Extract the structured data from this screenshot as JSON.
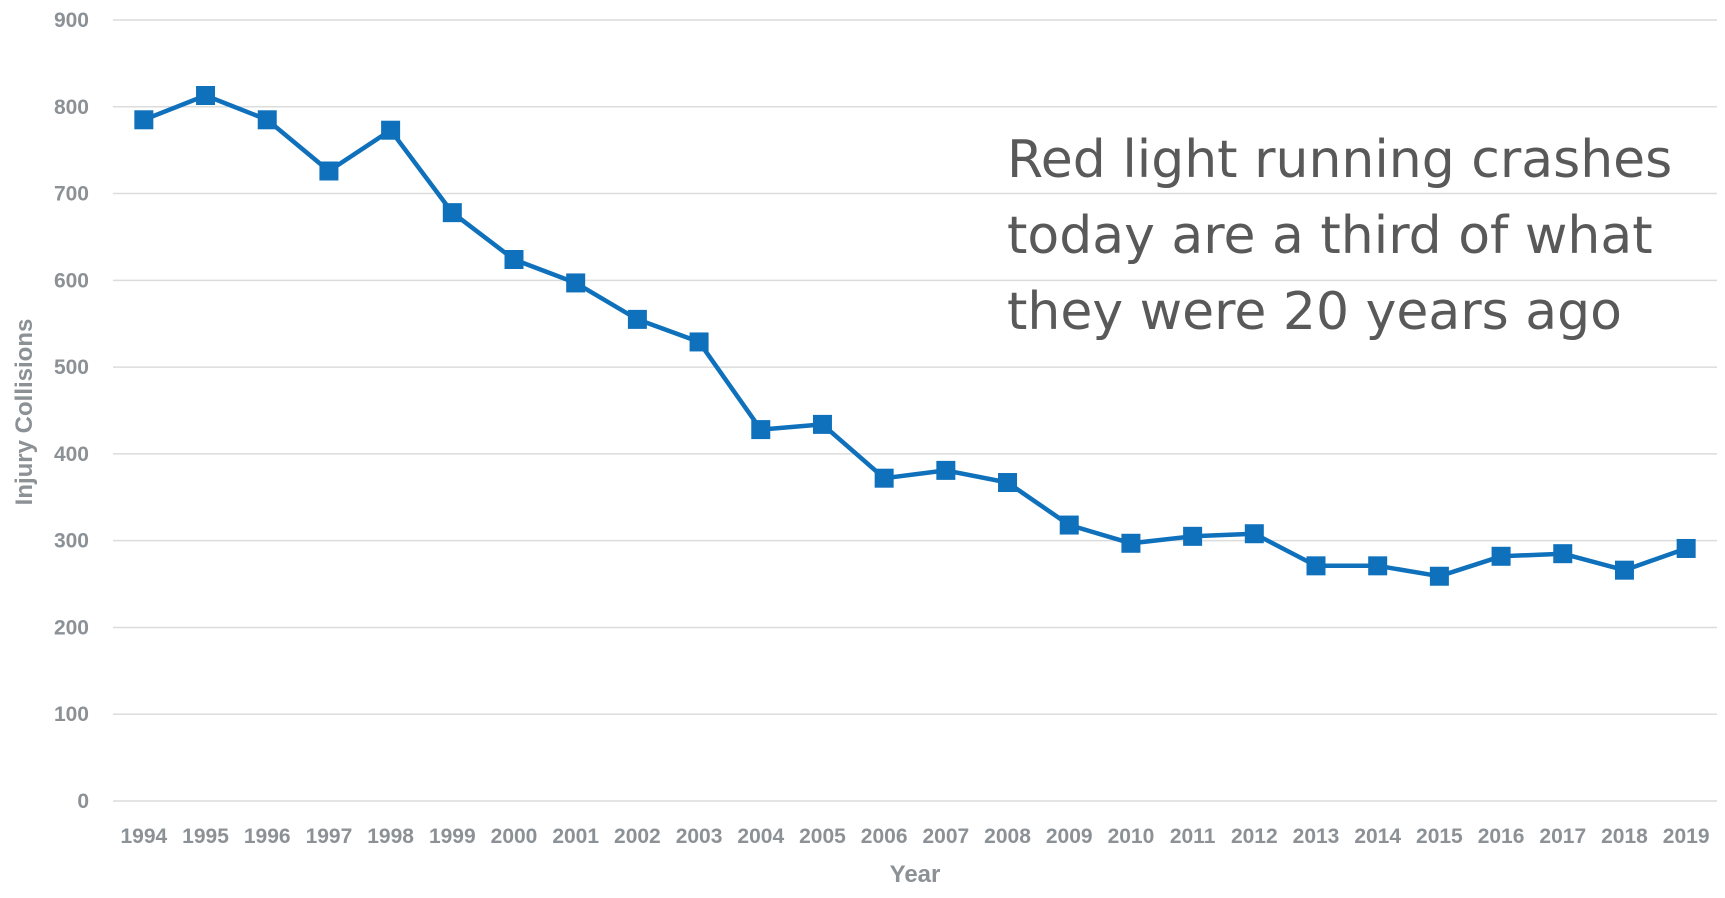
{
  "chart_data": {
    "type": "line",
    "title": "",
    "xlabel": "Year",
    "ylabel": "Injury Collisions",
    "ylim": [
      0,
      900
    ],
    "yticks": [
      "0",
      "100",
      "200",
      "300",
      "400",
      "500",
      "600",
      "700",
      "800",
      "900"
    ],
    "grid": true,
    "legend": "none",
    "categories": [
      "1994",
      "1995",
      "1996",
      "1997",
      "1998",
      "1999",
      "2000",
      "2001",
      "2002",
      "2003",
      "2004",
      "2005",
      "2006",
      "2007",
      "2008",
      "2009",
      "2010",
      "2011",
      "2012",
      "2013",
      "2014",
      "2015",
      "2016",
      "2017",
      "2018",
      "2019"
    ],
    "series": [
      {
        "values": [
          785,
          813,
          785,
          726,
          773,
          678,
          624,
          597,
          555,
          529,
          428,
          434,
          372,
          381,
          367,
          318,
          297,
          305,
          308,
          271,
          271,
          259,
          282,
          285,
          266,
          291
        ],
        "color": "#0f70bb",
        "marker": "square"
      }
    ],
    "annotations": [
      {
        "lines": [
          "Red light running crashes",
          "today are a third of what",
          "they were 20 years ago"
        ],
        "color": "#595959",
        "placement": "upper-right"
      }
    ]
  }
}
